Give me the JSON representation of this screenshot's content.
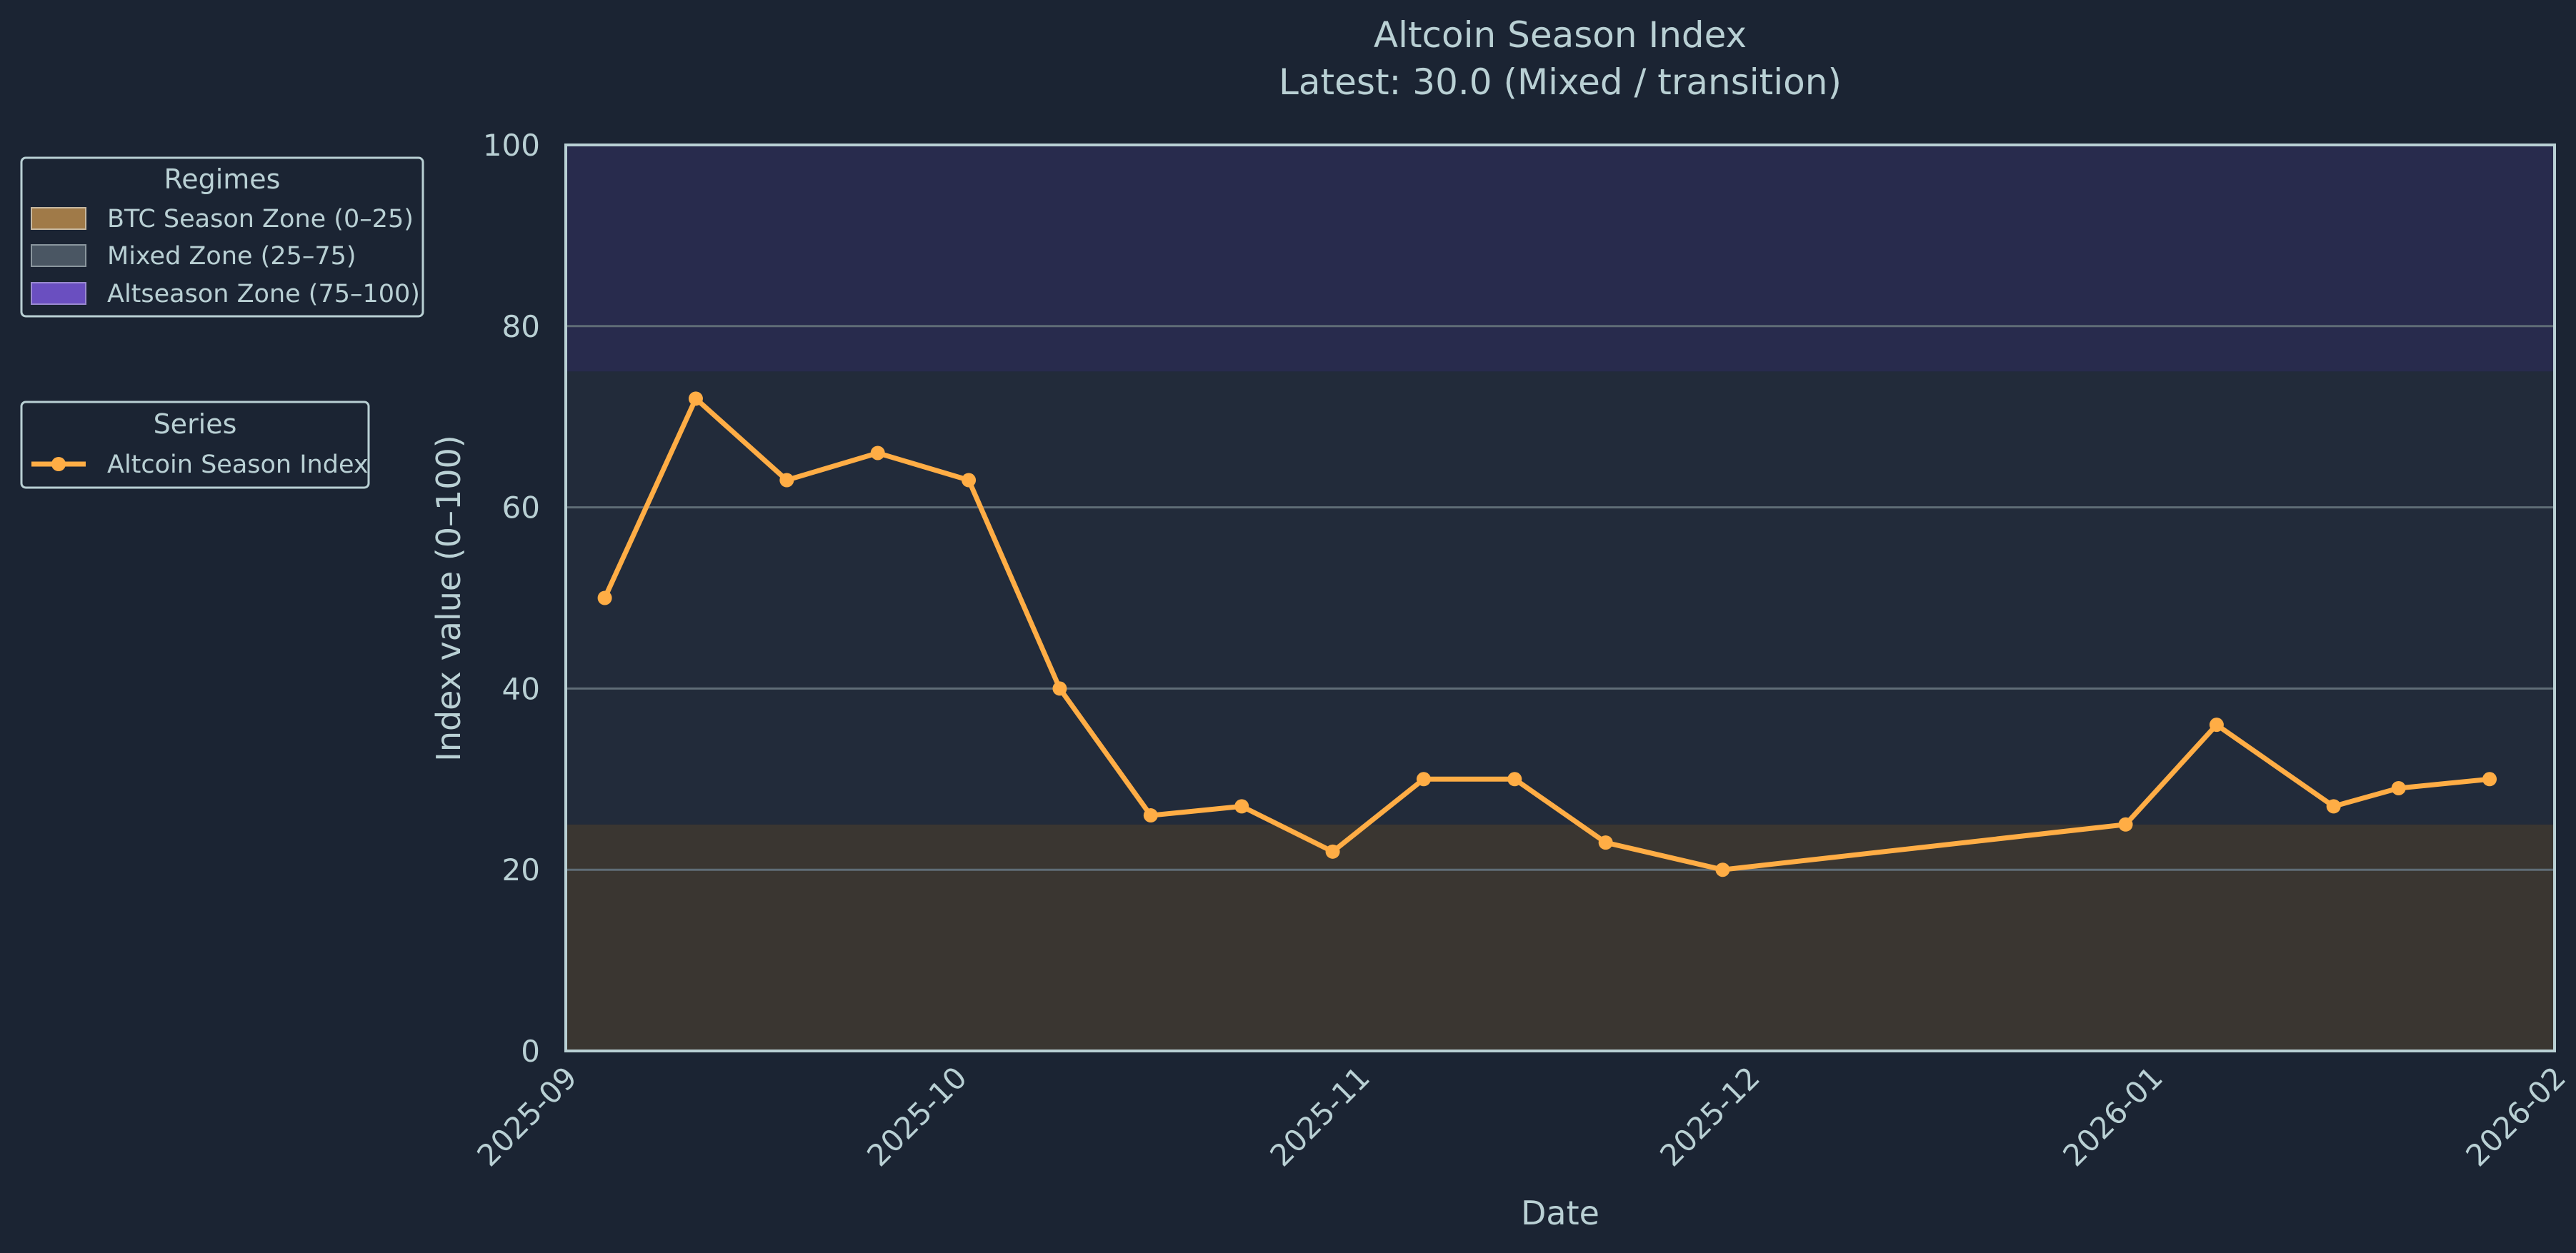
{
  "chart_data": {
    "type": "line",
    "title": "Altcoin Season Index",
    "subtitle": "Latest: 30.0 (Mixed / transition)",
    "xlabel": "Date",
    "ylabel": "Index value (0–100)",
    "xlim": [
      "2025-09-01",
      "2026-02-01"
    ],
    "ylim": [
      0,
      100
    ],
    "x_ticks": [
      "2025-09",
      "2025-10",
      "2025-11",
      "2025-12",
      "2026-01",
      "2026-02"
    ],
    "y_ticks": [
      0,
      20,
      40,
      60,
      80,
      100
    ],
    "grid": "horizontal",
    "bands": [
      {
        "name": "BTC Season Zone (0–25)",
        "y0": 0,
        "y1": 25,
        "color": "#3a3631",
        "swatch": "#a07a48"
      },
      {
        "name": "Mixed Zone (25–75)",
        "y0": 25,
        "y1": 75,
        "color": "#222b3a",
        "swatch": "#4a5663"
      },
      {
        "name": "Altseason Zone (75–100)",
        "y0": 75,
        "y1": 100,
        "color": "#282b4d",
        "swatch": "#6a4fc0"
      }
    ],
    "legends": [
      {
        "title": "Regimes",
        "entries": [
          "BTC Season Zone (0–25)",
          "Mixed Zone (25–75)",
          "Altseason Zone (75–100)"
        ]
      },
      {
        "title": "Series",
        "entries": [
          "Altcoin Season Index"
        ]
      }
    ],
    "series": [
      {
        "name": "Altcoin Season Index",
        "color": "#ffad45",
        "points": [
          {
            "x": "2025-09-04",
            "y": 50
          },
          {
            "x": "2025-09-11",
            "y": 72
          },
          {
            "x": "2025-09-18",
            "y": 63
          },
          {
            "x": "2025-09-25",
            "y": 66
          },
          {
            "x": "2025-10-02",
            "y": 63
          },
          {
            "x": "2025-10-09",
            "y": 40
          },
          {
            "x": "2025-10-16",
            "y": 26
          },
          {
            "x": "2025-10-23",
            "y": 27
          },
          {
            "x": "2025-10-30",
            "y": 22
          },
          {
            "x": "2025-11-06",
            "y": 30
          },
          {
            "x": "2025-11-13",
            "y": 30
          },
          {
            "x": "2025-11-20",
            "y": 23
          },
          {
            "x": "2025-11-29",
            "y": 20
          },
          {
            "x": "2025-12-30",
            "y": 25
          },
          {
            "x": "2026-01-06",
            "y": 36
          },
          {
            "x": "2026-01-15",
            "y": 27
          },
          {
            "x": "2026-01-20",
            "y": 29
          },
          {
            "x": "2026-01-27",
            "y": 30
          }
        ]
      }
    ]
  }
}
